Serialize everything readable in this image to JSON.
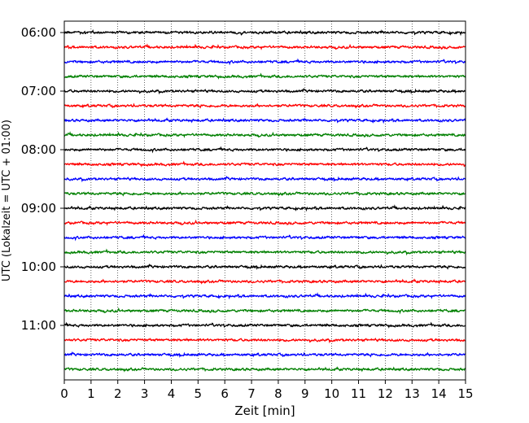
{
  "chart_data": {
    "type": "line",
    "xlabel": "Zeit  [min]",
    "ylabel": "UTC (Lokalzeit = UTC + 01:00)",
    "xlim": [
      0,
      15
    ],
    "x_ticks": [
      "0",
      "1",
      "2",
      "3",
      "4",
      "5",
      "6",
      "7",
      "8",
      "9",
      "10",
      "11",
      "12",
      "13",
      "14",
      "15"
    ],
    "y_tick_labels": [
      "06:00",
      "07:00",
      "08:00",
      "09:00",
      "10:00",
      "11:00"
    ],
    "grid": "vertical dotted",
    "traces_per_hour": 4,
    "trace_interval_min": 15,
    "trace_start": "06:00",
    "trace_count": 24,
    "series_colors": [
      "#000000",
      "#ff0000",
      "#0000ff",
      "#008000"
    ]
  }
}
